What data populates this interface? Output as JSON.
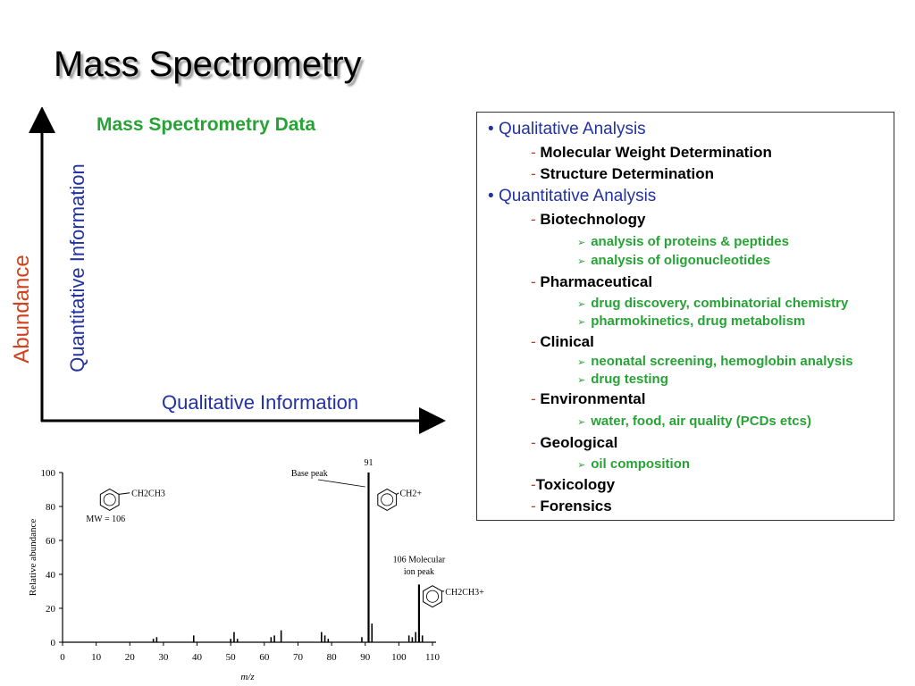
{
  "slide": {
    "title": "Mass Spectrometry"
  },
  "concept": {
    "title": "Mass Spectrometry Data",
    "x_label": "Qualitative Information",
    "y_label_outer": "Abundance",
    "y_label_inner": "Quantitative Information"
  },
  "list": {
    "items": [
      {
        "level": 0,
        "marker": "•",
        "text": "Qualitative Analysis"
      },
      {
        "level": 1,
        "marker": "-",
        "text": "Molecular Weight Determination"
      },
      {
        "level": 1,
        "marker": "-",
        "text": "Structure Determination"
      },
      {
        "level": 0,
        "marker": "•",
        "text": "Quantitative Analysis"
      },
      {
        "level": 1,
        "marker": "-",
        "text": "Biotechnology"
      },
      {
        "level": 2,
        "marker": "➢",
        "text": "analysis of proteins & peptides"
      },
      {
        "level": 2,
        "marker": "➢",
        "text": "analysis of  oligonucleotides"
      },
      {
        "level": 1,
        "marker": "-",
        "text": "Pharmaceutical"
      },
      {
        "level": 2,
        "marker": "➢",
        "text": "drug discovery, combinatorial chemistry"
      },
      {
        "level": 2,
        "marker": "➢",
        "text": "pharmokinetics, drug metabolism"
      },
      {
        "level": 1,
        "marker": "-",
        "text": "Clinical"
      },
      {
        "level": 2,
        "marker": "➢",
        "text": "neonatal screening, hemoglobin analysis"
      },
      {
        "level": 2,
        "marker": "➢",
        "text": "drug testing"
      },
      {
        "level": 1,
        "marker": "-",
        "text": "Environmental"
      },
      {
        "level": 2,
        "marker": "➢",
        "text": "water, food, air quality (PCDs etcs)"
      },
      {
        "level": 1,
        "marker": "-",
        "text": "Geological"
      },
      {
        "level": 2,
        "marker": "➢",
        "text": "oil composition"
      },
      {
        "level": 1,
        "marker": "-",
        "text": "Toxicology"
      },
      {
        "level": 1,
        "marker": "-",
        "text": "Forensics"
      }
    ]
  },
  "chart_data": {
    "type": "bar",
    "title": "",
    "xlabel": "m/z",
    "ylabel": "Relative abundance",
    "xlim": [
      0,
      110
    ],
    "ylim": [
      0,
      100
    ],
    "x_ticks": [
      0,
      10,
      20,
      30,
      40,
      50,
      60,
      70,
      80,
      90,
      100,
      110
    ],
    "y_ticks": [
      0,
      20,
      40,
      60,
      80,
      100
    ],
    "peaks": [
      {
        "mz": 27,
        "abundance": 2
      },
      {
        "mz": 28,
        "abundance": 3
      },
      {
        "mz": 39,
        "abundance": 4
      },
      {
        "mz": 50,
        "abundance": 2
      },
      {
        "mz": 51,
        "abundance": 6
      },
      {
        "mz": 52,
        "abundance": 2
      },
      {
        "mz": 62,
        "abundance": 3
      },
      {
        "mz": 63,
        "abundance": 4
      },
      {
        "mz": 65,
        "abundance": 7
      },
      {
        "mz": 77,
        "abundance": 6
      },
      {
        "mz": 78,
        "abundance": 4
      },
      {
        "mz": 79,
        "abundance": 2
      },
      {
        "mz": 89,
        "abundance": 3
      },
      {
        "mz": 91,
        "abundance": 100
      },
      {
        "mz": 92,
        "abundance": 11
      },
      {
        "mz": 103,
        "abundance": 4
      },
      {
        "mz": 104,
        "abundance": 3
      },
      {
        "mz": 105,
        "abundance": 6
      },
      {
        "mz": 106,
        "abundance": 34
      },
      {
        "mz": 107,
        "abundance": 4
      }
    ],
    "annotations": {
      "base_peak_label": "Base peak",
      "base_peak_mz": "91",
      "base_ion_formula": "CH2+",
      "molecular_label_line1": "106 Molecular",
      "molecular_label_line2": "ion peak",
      "molecular_ion_formula": "CH2CH3+",
      "parent_formula": "CH2CH3",
      "mw_label": "MW = 106"
    }
  }
}
